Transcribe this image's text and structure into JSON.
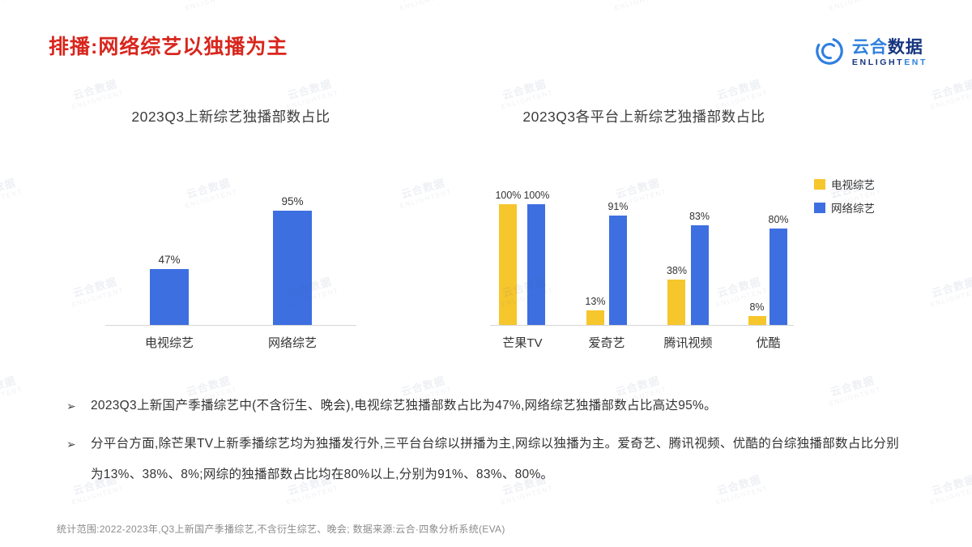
{
  "page": {
    "title": "排播:网络综艺以独播为主",
    "footer": "统计范围:2022-2023年,Q3上新国产季播综艺,不含衍生综艺、晚会; 数据来源:云合·四象分析系统(EVA)",
    "watermark": {
      "cn": "云合数据",
      "en": "ENLIGHTENT"
    }
  },
  "logo": {
    "cn_a": "云合",
    "cn_b": "数据",
    "en_a": "ENLIGHT",
    "en_b": "ENT"
  },
  "bullet_marker": "➢",
  "bullets": [
    "2023Q3上新国产季播综艺中(不含衍生、晚会),电视综艺独播部数占比为47%,网络综艺独播部数占比高达95%。",
    "分平台方面,除芒果TV上新季播综艺均为独播发行外,三平台台综以拼播为主,网综以独播为主。爱奇艺、腾讯视频、优酷的台综独播部数占比分别为13%、38%、8%;网综的独播部数占比均在80%以上,分别为91%、83%、80%。"
  ],
  "colors": {
    "title_red": "#d8261d",
    "tv_yellow": "#f6c62d",
    "web_blue": "#3d6fe1"
  },
  "chart_data": [
    {
      "type": "bar",
      "title": "2023Q3上新综艺独播部数占比",
      "categories": [
        "电视综艺",
        "网络综艺"
      ],
      "values": [
        47,
        95
      ],
      "unit": "%",
      "bar_color": "#3d6fe1",
      "ylim": [
        0,
        100
      ],
      "grid": false,
      "data_labels": [
        "47%",
        "95%"
      ]
    },
    {
      "type": "bar",
      "title": "2023Q3各平台上新综艺独播部数占比",
      "categories": [
        "芒果TV",
        "爱奇艺",
        "腾讯视频",
        "优酷"
      ],
      "series": [
        {
          "name": "电视综艺",
          "color": "#f6c62d",
          "values": [
            100,
            13,
            38,
            8
          ]
        },
        {
          "name": "网络综艺",
          "color": "#3d6fe1",
          "values": [
            100,
            91,
            83,
            80
          ]
        }
      ],
      "unit": "%",
      "ylim": [
        0,
        100
      ],
      "grid": false,
      "legend_position": "top-right"
    }
  ]
}
